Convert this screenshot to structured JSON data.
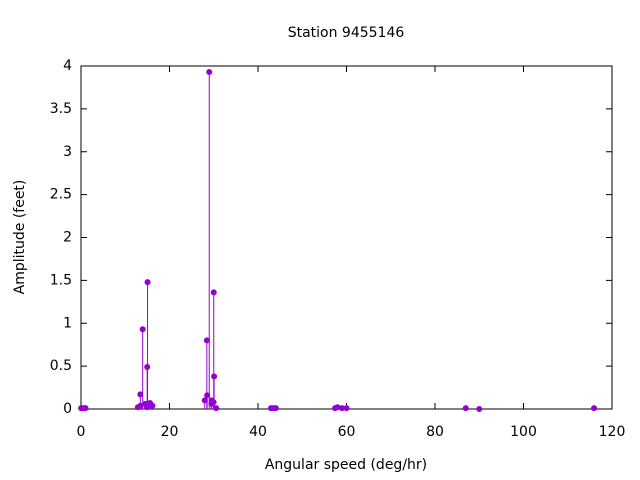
{
  "chart_data": {
    "type": "stem",
    "title": "Station 9455146",
    "xlabel": "Angular speed (deg/hr)",
    "ylabel": "Amplitude (feet)",
    "color": "#9400d3",
    "x": [
      0.04,
      0.08,
      0.54,
      1.02,
      12.85,
      13.4,
      13.94,
      14.49,
      14.96,
      15.04,
      15.59,
      16.14,
      13.47,
      14.92,
      15.12,
      27.97,
      28.44,
      28.51,
      28.98,
      29.46,
      29.53,
      29.96,
      30.0,
      30.08,
      30.54,
      42.93,
      43.48,
      44.03,
      57.42,
      57.97,
      58.98,
      60.0,
      86.95,
      90.0,
      115.94
    ],
    "values": [
      0.01,
      0.01,
      0.01,
      0.01,
      0.02,
      0.17,
      0.93,
      0.06,
      0.49,
      1.48,
      0.07,
      0.04,
      0.04,
      0.02,
      0.03,
      0.1,
      0.8,
      0.16,
      3.93,
      0.06,
      0.1,
      0.08,
      1.36,
      0.38,
      0.01,
      0.01,
      0.01,
      0.01,
      0.01,
      0.02,
      0.01,
      0.01,
      0.01,
      0.0,
      0.01
    ],
    "xlim": [
      0,
      120
    ],
    "xticks": [
      0,
      20,
      40,
      60,
      80,
      100,
      120
    ],
    "ylim": [
      0,
      4
    ],
    "yticks": [
      0,
      0.5,
      1,
      1.5,
      2,
      2.5,
      3,
      3.5,
      4
    ]
  }
}
